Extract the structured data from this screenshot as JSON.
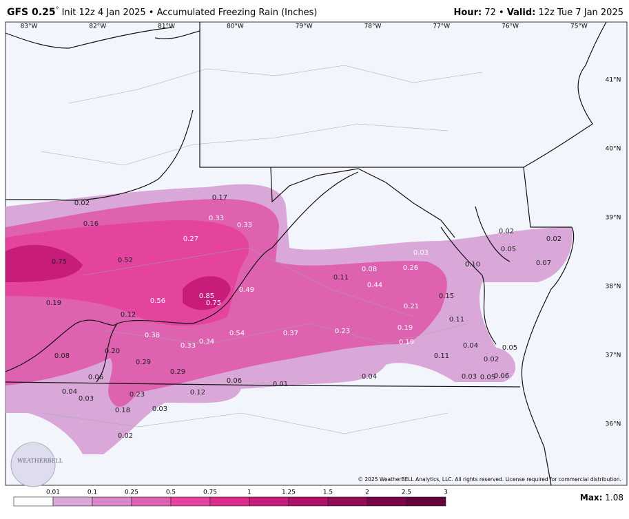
{
  "header": {
    "model": "GFS 0.25",
    "degree": "°",
    "run": "Init 12z 4 Jan 2025 • Accumulated Freezing Rain (Inches)",
    "hour_label": "Hour:",
    "hour": "72 •",
    "valid_label": "Valid:",
    "valid": "12z Tue 7 Jan 2025"
  },
  "map": {
    "longitudes": [
      "83°W",
      "82°W",
      "81°W",
      "80°W",
      "79°W",
      "78°W",
      "77°W",
      "76°W",
      "75°W"
    ],
    "latitudes": [
      "41°N",
      "40°N",
      "39°N",
      "38°N",
      "37°N",
      "36°N"
    ],
    "labels": [
      "0.17",
      "0.02",
      "0.33",
      "0.33",
      "0.16",
      "0.27",
      "0.75",
      "0.52",
      "0.19",
      "0.56",
      "0.85",
      "0.75",
      "0.49",
      "0.12",
      "0.38",
      "0.54",
      "0.37",
      "0.23",
      "0.33",
      "0.34",
      "0.20",
      "0.08",
      "0.29",
      "0.29",
      "0.06",
      "0.06",
      "0.01",
      "0.04",
      "0.03",
      "0.23",
      "0.12",
      "0.18",
      "0.03",
      "0.02",
      "0.04",
      "0.08",
      "0.11",
      "0.44",
      "0.26",
      "0.03",
      "0.21",
      "0.19",
      "0.19",
      "0.15",
      "0.11",
      "0.04",
      "0.11",
      "0.02",
      "0.05",
      "0.03",
      "0.05",
      "0.06",
      "0.10",
      "0.02",
      "0.05",
      "0.02",
      "0.07"
    ],
    "logo": "WEATHERBELL",
    "copyright": "© 2025 WeatherBELL Analytics, LLC. All rights reserved. License required for commercial distribution."
  },
  "colorbar": {
    "ticks": [
      "0.01",
      "0.1",
      "0.25",
      "0.5",
      "0.75",
      "1",
      "1.25",
      "1.5",
      "2",
      "2.5",
      "3"
    ],
    "colors": [
      "#ffffff",
      "#d9a8d8",
      "#d987c9",
      "#df62b0",
      "#e5449e",
      "#dd2b8c",
      "#c71c7a",
      "#ad1268",
      "#920b57",
      "#790747",
      "#64043a"
    ],
    "max_label": "Max:",
    "max": "1.08"
  }
}
